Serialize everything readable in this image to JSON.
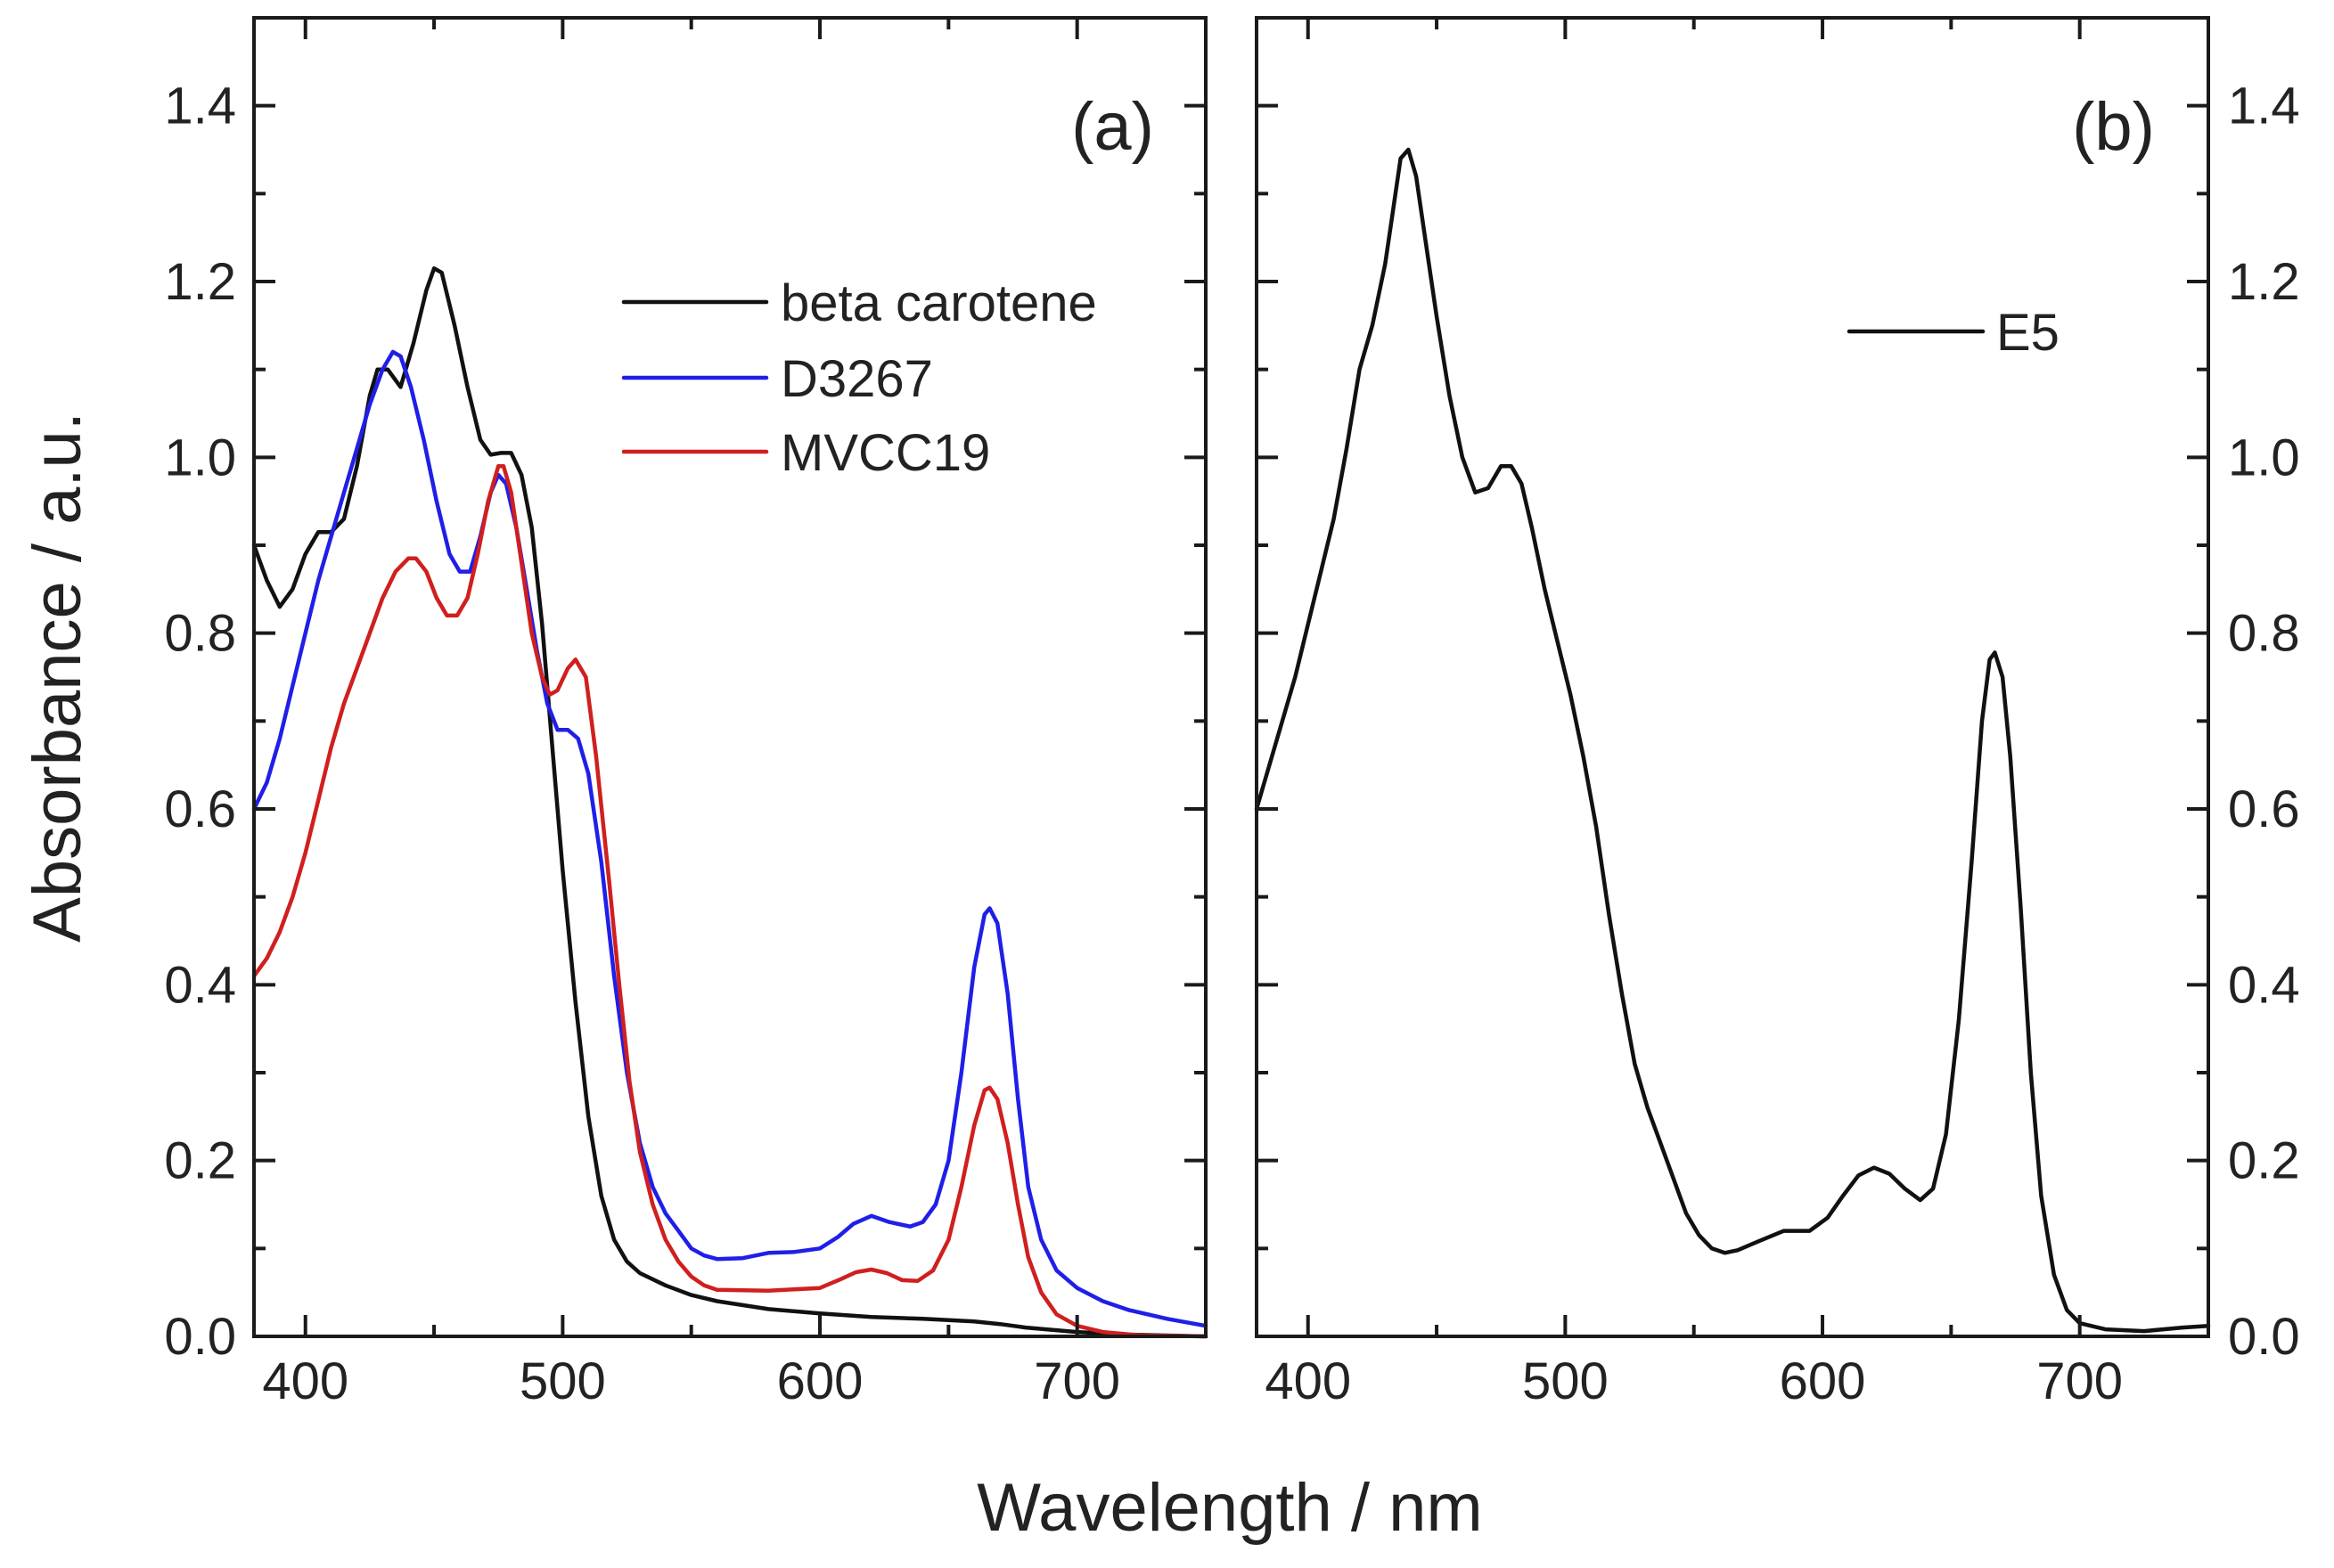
{
  "figure": {
    "x_axis_title": "Wavelength / nm",
    "y_axis_title": "Absorbance / a.u."
  },
  "chart_data": [
    {
      "type": "line",
      "panel_label": "(a)",
      "xlim": [
        380,
        750
      ],
      "ylim": [
        0,
        1.5
      ],
      "x_ticks": [
        400,
        500,
        600,
        700
      ],
      "x_tick_labels": [
        "400",
        "500",
        "600",
        "700"
      ],
      "y_ticks": [
        0.0,
        0.2,
        0.4,
        0.6,
        0.8,
        1.0,
        1.2,
        1.4
      ],
      "y_tick_labels": [
        "0.0",
        "0.2",
        "0.4",
        "0.6",
        "0.8",
        "1.0",
        "1.2",
        "1.4"
      ],
      "y_axis_side": "left",
      "legend_position": "top-center",
      "series": [
        {
          "name": "beta carotene",
          "color": "#111111",
          "points": [
            [
              380,
              0.9
            ],
            [
              385,
              0.86
            ],
            [
              390,
              0.83
            ],
            [
              395,
              0.85
            ],
            [
              400,
              0.89
            ],
            [
              405,
              0.915
            ],
            [
              410,
              0.915
            ],
            [
              415,
              0.93
            ],
            [
              420,
              0.99
            ],
            [
              425,
              1.07
            ],
            [
              428,
              1.1
            ],
            [
              432,
              1.1
            ],
            [
              437,
              1.08
            ],
            [
              442,
              1.13
            ],
            [
              447,
              1.19
            ],
            [
              450,
              1.215
            ],
            [
              453,
              1.21
            ],
            [
              458,
              1.15
            ],
            [
              463,
              1.08
            ],
            [
              468,
              1.02
            ],
            [
              472,
              1.003
            ],
            [
              476,
              1.005
            ],
            [
              480,
              1.005
            ],
            [
              484,
              0.98
            ],
            [
              488,
              0.92
            ],
            [
              492,
              0.81
            ],
            [
              496,
              0.67
            ],
            [
              500,
              0.53
            ],
            [
              505,
              0.38
            ],
            [
              510,
              0.25
            ],
            [
              515,
              0.16
            ],
            [
              520,
              0.11
            ],
            [
              525,
              0.085
            ],
            [
              530,
              0.072
            ],
            [
              540,
              0.058
            ],
            [
              550,
              0.047
            ],
            [
              560,
              0.04
            ],
            [
              580,
              0.031
            ],
            [
              600,
              0.026
            ],
            [
              620,
              0.022
            ],
            [
              640,
              0.02
            ],
            [
              660,
              0.017
            ],
            [
              670,
              0.014
            ],
            [
              680,
              0.01
            ],
            [
              700,
              0.005
            ],
            [
              720,
              0.002
            ],
            [
              750,
              0.0
            ]
          ]
        },
        {
          "name": "D3267",
          "color": "#1f1fe8",
          "points": [
            [
              380,
              0.6
            ],
            [
              385,
              0.63
            ],
            [
              390,
              0.68
            ],
            [
              395,
              0.74
            ],
            [
              400,
              0.8
            ],
            [
              405,
              0.86
            ],
            [
              410,
              0.91
            ],
            [
              415,
              0.96
            ],
            [
              420,
              1.01
            ],
            [
              425,
              1.06
            ],
            [
              430,
              1.1
            ],
            [
              434,
              1.12
            ],
            [
              437,
              1.115
            ],
            [
              441,
              1.08
            ],
            [
              446,
              1.02
            ],
            [
              451,
              0.95
            ],
            [
              456,
              0.89
            ],
            [
              460,
              0.87
            ],
            [
              464,
              0.87
            ],
            [
              468,
              0.91
            ],
            [
              472,
              0.96
            ],
            [
              475,
              0.98
            ],
            [
              478,
              0.97
            ],
            [
              482,
              0.92
            ],
            [
              486,
              0.85
            ],
            [
              490,
              0.78
            ],
            [
              494,
              0.72
            ],
            [
              498,
              0.69
            ],
            [
              502,
              0.69
            ],
            [
              506,
              0.68
            ],
            [
              510,
              0.64
            ],
            [
              515,
              0.54
            ],
            [
              520,
              0.41
            ],
            [
              525,
              0.3
            ],
            [
              530,
              0.22
            ],
            [
              535,
              0.17
            ],
            [
              540,
              0.14
            ],
            [
              545,
              0.12
            ],
            [
              550,
              0.1
            ],
            [
              555,
              0.092
            ],
            [
              560,
              0.088
            ],
            [
              570,
              0.089
            ],
            [
              580,
              0.095
            ],
            [
              590,
              0.096
            ],
            [
              600,
              0.1
            ],
            [
              607,
              0.113
            ],
            [
              613,
              0.128
            ],
            [
              620,
              0.137
            ],
            [
              627,
              0.13
            ],
            [
              635,
              0.125
            ],
            [
              640,
              0.13
            ],
            [
              645,
              0.15
            ],
            [
              650,
              0.2
            ],
            [
              655,
              0.3
            ],
            [
              660,
              0.42
            ],
            [
              664,
              0.48
            ],
            [
              666,
              0.487
            ],
            [
              669,
              0.47
            ],
            [
              673,
              0.39
            ],
            [
              677,
              0.27
            ],
            [
              681,
              0.17
            ],
            [
              686,
              0.11
            ],
            [
              692,
              0.075
            ],
            [
              700,
              0.055
            ],
            [
              710,
              0.04
            ],
            [
              720,
              0.03
            ],
            [
              735,
              0.02
            ],
            [
              750,
              0.012
            ]
          ]
        },
        {
          "name": "MVCC19",
          "color": "#d01f1f",
          "points": [
            [
              380,
              0.41
            ],
            [
              385,
              0.43
            ],
            [
              390,
              0.46
            ],
            [
              395,
              0.5
            ],
            [
              400,
              0.55
            ],
            [
              405,
              0.61
            ],
            [
              410,
              0.67
            ],
            [
              415,
              0.72
            ],
            [
              420,
              0.76
            ],
            [
              425,
              0.8
            ],
            [
              430,
              0.84
            ],
            [
              435,
              0.87
            ],
            [
              440,
              0.885
            ],
            [
              443,
              0.885
            ],
            [
              447,
              0.87
            ],
            [
              451,
              0.84
            ],
            [
              455,
              0.82
            ],
            [
              459,
              0.82
            ],
            [
              463,
              0.84
            ],
            [
              467,
              0.89
            ],
            [
              471,
              0.95
            ],
            [
              475,
              0.99
            ],
            [
              477,
              0.99
            ],
            [
              480,
              0.96
            ],
            [
              484,
              0.88
            ],
            [
              488,
              0.8
            ],
            [
              492,
              0.75
            ],
            [
              495,
              0.73
            ],
            [
              498,
              0.735
            ],
            [
              502,
              0.76
            ],
            [
              505,
              0.77
            ],
            [
              509,
              0.75
            ],
            [
              513,
              0.66
            ],
            [
              518,
              0.52
            ],
            [
              522,
              0.4
            ],
            [
              526,
              0.29
            ],
            [
              530,
              0.21
            ],
            [
              535,
              0.15
            ],
            [
              540,
              0.11
            ],
            [
              545,
              0.085
            ],
            [
              550,
              0.068
            ],
            [
              555,
              0.058
            ],
            [
              560,
              0.053
            ],
            [
              580,
              0.052
            ],
            [
              600,
              0.055
            ],
            [
              608,
              0.065
            ],
            [
              614,
              0.073
            ],
            [
              620,
              0.076
            ],
            [
              626,
              0.072
            ],
            [
              632,
              0.064
            ],
            [
              638,
              0.063
            ],
            [
              644,
              0.075
            ],
            [
              650,
              0.11
            ],
            [
              655,
              0.17
            ],
            [
              660,
              0.24
            ],
            [
              664,
              0.28
            ],
            [
              666,
              0.283
            ],
            [
              669,
              0.27
            ],
            [
              673,
              0.22
            ],
            [
              677,
              0.15
            ],
            [
              681,
              0.09
            ],
            [
              686,
              0.05
            ],
            [
              692,
              0.025
            ],
            [
              700,
              0.012
            ],
            [
              710,
              0.005
            ],
            [
              725,
              0.001
            ],
            [
              750,
              0.0
            ]
          ]
        }
      ]
    },
    {
      "type": "line",
      "panel_label": "(b)",
      "xlim": [
        380,
        750
      ],
      "ylim": [
        0,
        1.5
      ],
      "x_ticks": [
        400,
        500,
        600,
        700
      ],
      "x_tick_labels": [
        "400",
        "500",
        "600",
        "700"
      ],
      "y_ticks": [
        0.0,
        0.2,
        0.4,
        0.6,
        0.8,
        1.0,
        1.2,
        1.4
      ],
      "y_tick_labels": [
        "0.0",
        "0.2",
        "0.4",
        "0.6",
        "0.8",
        "1.0",
        "1.2",
        "1.4"
      ],
      "y_axis_side": "right",
      "legend_position": "top-right",
      "series": [
        {
          "name": "E5",
          "color": "#111111",
          "points": [
            [
              380,
              0.6
            ],
            [
              385,
              0.65
            ],
            [
              390,
              0.7
            ],
            [
              395,
              0.75
            ],
            [
              400,
              0.81
            ],
            [
              405,
              0.87
            ],
            [
              410,
              0.93
            ],
            [
              415,
              1.01
            ],
            [
              420,
              1.1
            ],
            [
              425,
              1.15
            ],
            [
              430,
              1.22
            ],
            [
              433,
              1.28
            ],
            [
              436,
              1.34
            ],
            [
              439,
              1.35
            ],
            [
              442,
              1.32
            ],
            [
              446,
              1.24
            ],
            [
              450,
              1.16
            ],
            [
              455,
              1.07
            ],
            [
              460,
              1.0
            ],
            [
              465,
              0.96
            ],
            [
              470,
              0.965
            ],
            [
              475,
              0.99
            ],
            [
              479,
              0.99
            ],
            [
              483,
              0.97
            ],
            [
              487,
              0.92
            ],
            [
              492,
              0.85
            ],
            [
              497,
              0.79
            ],
            [
              502,
              0.73
            ],
            [
              507,
              0.66
            ],
            [
              512,
              0.58
            ],
            [
              517,
              0.48
            ],
            [
              522,
              0.39
            ],
            [
              527,
              0.31
            ],
            [
              532,
              0.26
            ],
            [
              537,
              0.22
            ],
            [
              542,
              0.18
            ],
            [
              547,
              0.14
            ],
            [
              552,
              0.115
            ],
            [
              557,
              0.1
            ],
            [
              562,
              0.095
            ],
            [
              567,
              0.098
            ],
            [
              575,
              0.108
            ],
            [
              585,
              0.12
            ],
            [
              595,
              0.12
            ],
            [
              602,
              0.135
            ],
            [
              608,
              0.16
            ],
            [
              614,
              0.183
            ],
            [
              620,
              0.192
            ],
            [
              626,
              0.185
            ],
            [
              632,
              0.168
            ],
            [
              638,
              0.155
            ],
            [
              643,
              0.168
            ],
            [
              648,
              0.23
            ],
            [
              653,
              0.36
            ],
            [
              658,
              0.54
            ],
            [
              662,
              0.7
            ],
            [
              665,
              0.77
            ],
            [
              667,
              0.778
            ],
            [
              670,
              0.75
            ],
            [
              673,
              0.66
            ],
            [
              677,
              0.49
            ],
            [
              681,
              0.3
            ],
            [
              685,
              0.16
            ],
            [
              690,
              0.07
            ],
            [
              695,
              0.03
            ],
            [
              700,
              0.015
            ],
            [
              710,
              0.008
            ],
            [
              725,
              0.006
            ],
            [
              740,
              0.01
            ],
            [
              750,
              0.012
            ]
          ]
        }
      ]
    }
  ]
}
